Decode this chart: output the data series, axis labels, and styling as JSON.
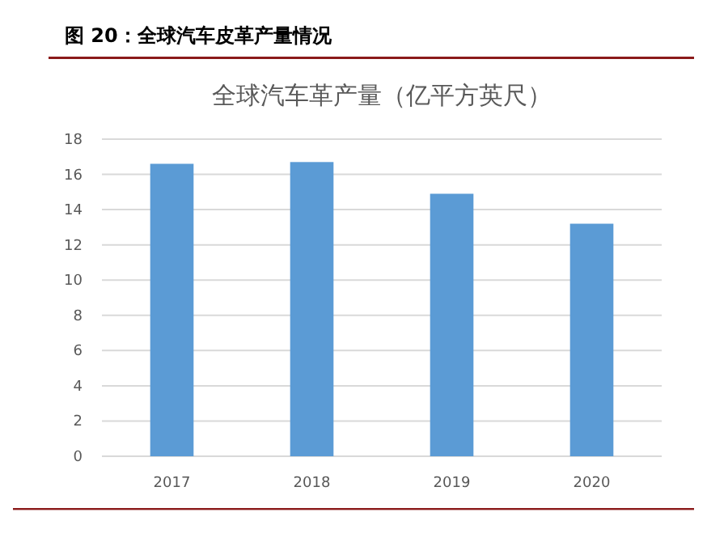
{
  "chart_data": {
    "type": "bar",
    "title": "图 20：全球汽车皮革产量情况",
    "subtitle": "全球汽车革产量（亿平方英尺）",
    "categories": [
      "2017",
      "2018",
      "2019",
      "2020"
    ],
    "values": [
      16.6,
      16.7,
      14.9,
      13.2
    ],
    "color": "#5b9bd5",
    "ylim": [
      0,
      18
    ],
    "yticks": [
      0,
      2,
      4,
      6,
      8,
      10,
      12,
      14,
      16,
      18
    ],
    "grid": "y"
  }
}
